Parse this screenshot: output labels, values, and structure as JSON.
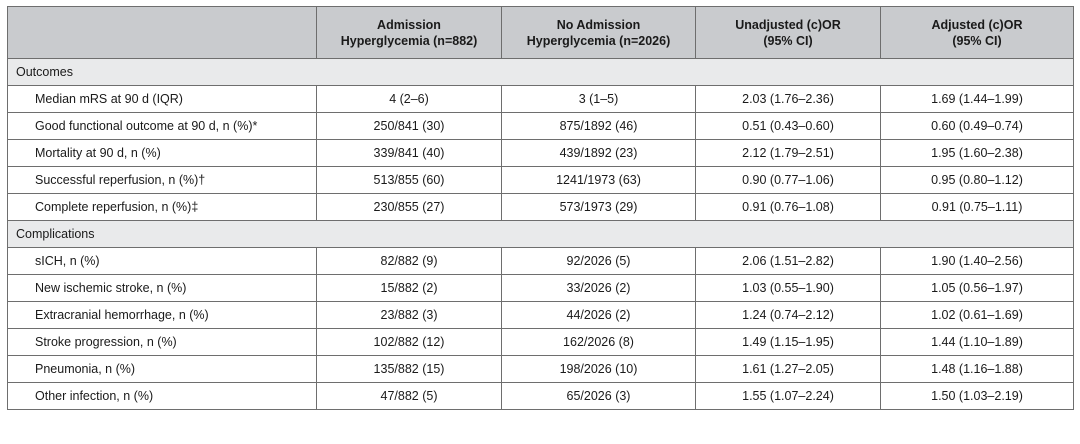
{
  "header": {
    "col1": {
      "line1": "Admission",
      "line2": "Hyperglycemia (n=882)"
    },
    "col2": {
      "line1": "No Admission",
      "line2": "Hyperglycemia (n=2026)"
    },
    "col3": {
      "line1": "Unadjusted (c)OR",
      "line2": "(95% CI)"
    },
    "col4": {
      "line1": "Adjusted (c)OR",
      "line2": "(95% CI)"
    }
  },
  "sections": [
    {
      "title": "Outcomes",
      "rows": [
        {
          "label": "Median mRS at 90 d (IQR)",
          "adm": "4 (2–6)",
          "noadm": "3 (1–5)",
          "unadj": "2.03 (1.76–2.36)",
          "adj": "1.69 (1.44–1.99)"
        },
        {
          "label": "Good functional outcome at 90 d, n (%)*",
          "adm": "250/841 (30)",
          "noadm": "875/1892 (46)",
          "unadj": "0.51 (0.43–0.60)",
          "adj": "0.60 (0.49–0.74)"
        },
        {
          "label": "Mortality at 90 d, n (%)",
          "adm": "339/841 (40)",
          "noadm": "439/1892 (23)",
          "unadj": "2.12 (1.79–2.51)",
          "adj": "1.95 (1.60–2.38)"
        },
        {
          "label": "Successful reperfusion, n (%)†",
          "adm": "513/855 (60)",
          "noadm": "1241/1973 (63)",
          "unadj": "0.90 (0.77–1.06)",
          "adj": "0.95 (0.80–1.12)"
        },
        {
          "label": "Complete reperfusion, n (%)‡",
          "adm": "230/855 (27)",
          "noadm": "573/1973 (29)",
          "unadj": "0.91 (0.76–1.08)",
          "adj": "0.91 (0.75–1.11)"
        }
      ]
    },
    {
      "title": "Complications",
      "rows": [
        {
          "label": "sICH, n (%)",
          "adm": "82/882 (9)",
          "noadm": "92/2026 (5)",
          "unadj": "2.06 (1.51–2.82)",
          "adj": "1.90 (1.40–2.56)"
        },
        {
          "label": "New ischemic stroke, n (%)",
          "adm": "15/882 (2)",
          "noadm": "33/2026 (2)",
          "unadj": "1.03 (0.55–1.90)",
          "adj": "1.05 (0.56–1.97)"
        },
        {
          "label": "Extracranial hemorrhage, n (%)",
          "adm": "23/882 (3)",
          "noadm": "44/2026 (2)",
          "unadj": "1.24 (0.74–2.12)",
          "adj": "1.02 (0.61–1.69)"
        },
        {
          "label": "Stroke progression, n (%)",
          "adm": "102/882 (12)",
          "noadm": "162/2026 (8)",
          "unadj": "1.49 (1.15–1.95)",
          "adj": "1.44 (1.10–1.89)"
        },
        {
          "label": "Pneumonia, n (%)",
          "adm": "135/882 (15)",
          "noadm": "198/2026 (10)",
          "unadj": "1.61 (1.27–2.05)",
          "adj": "1.48 (1.16–1.88)"
        },
        {
          "label": "Other infection, n (%)",
          "adm": "47/882 (5)",
          "noadm": "65/2026 (3)",
          "unadj": "1.55 (1.07–2.24)",
          "adj": "1.50 (1.03–2.19)"
        }
      ]
    }
  ]
}
